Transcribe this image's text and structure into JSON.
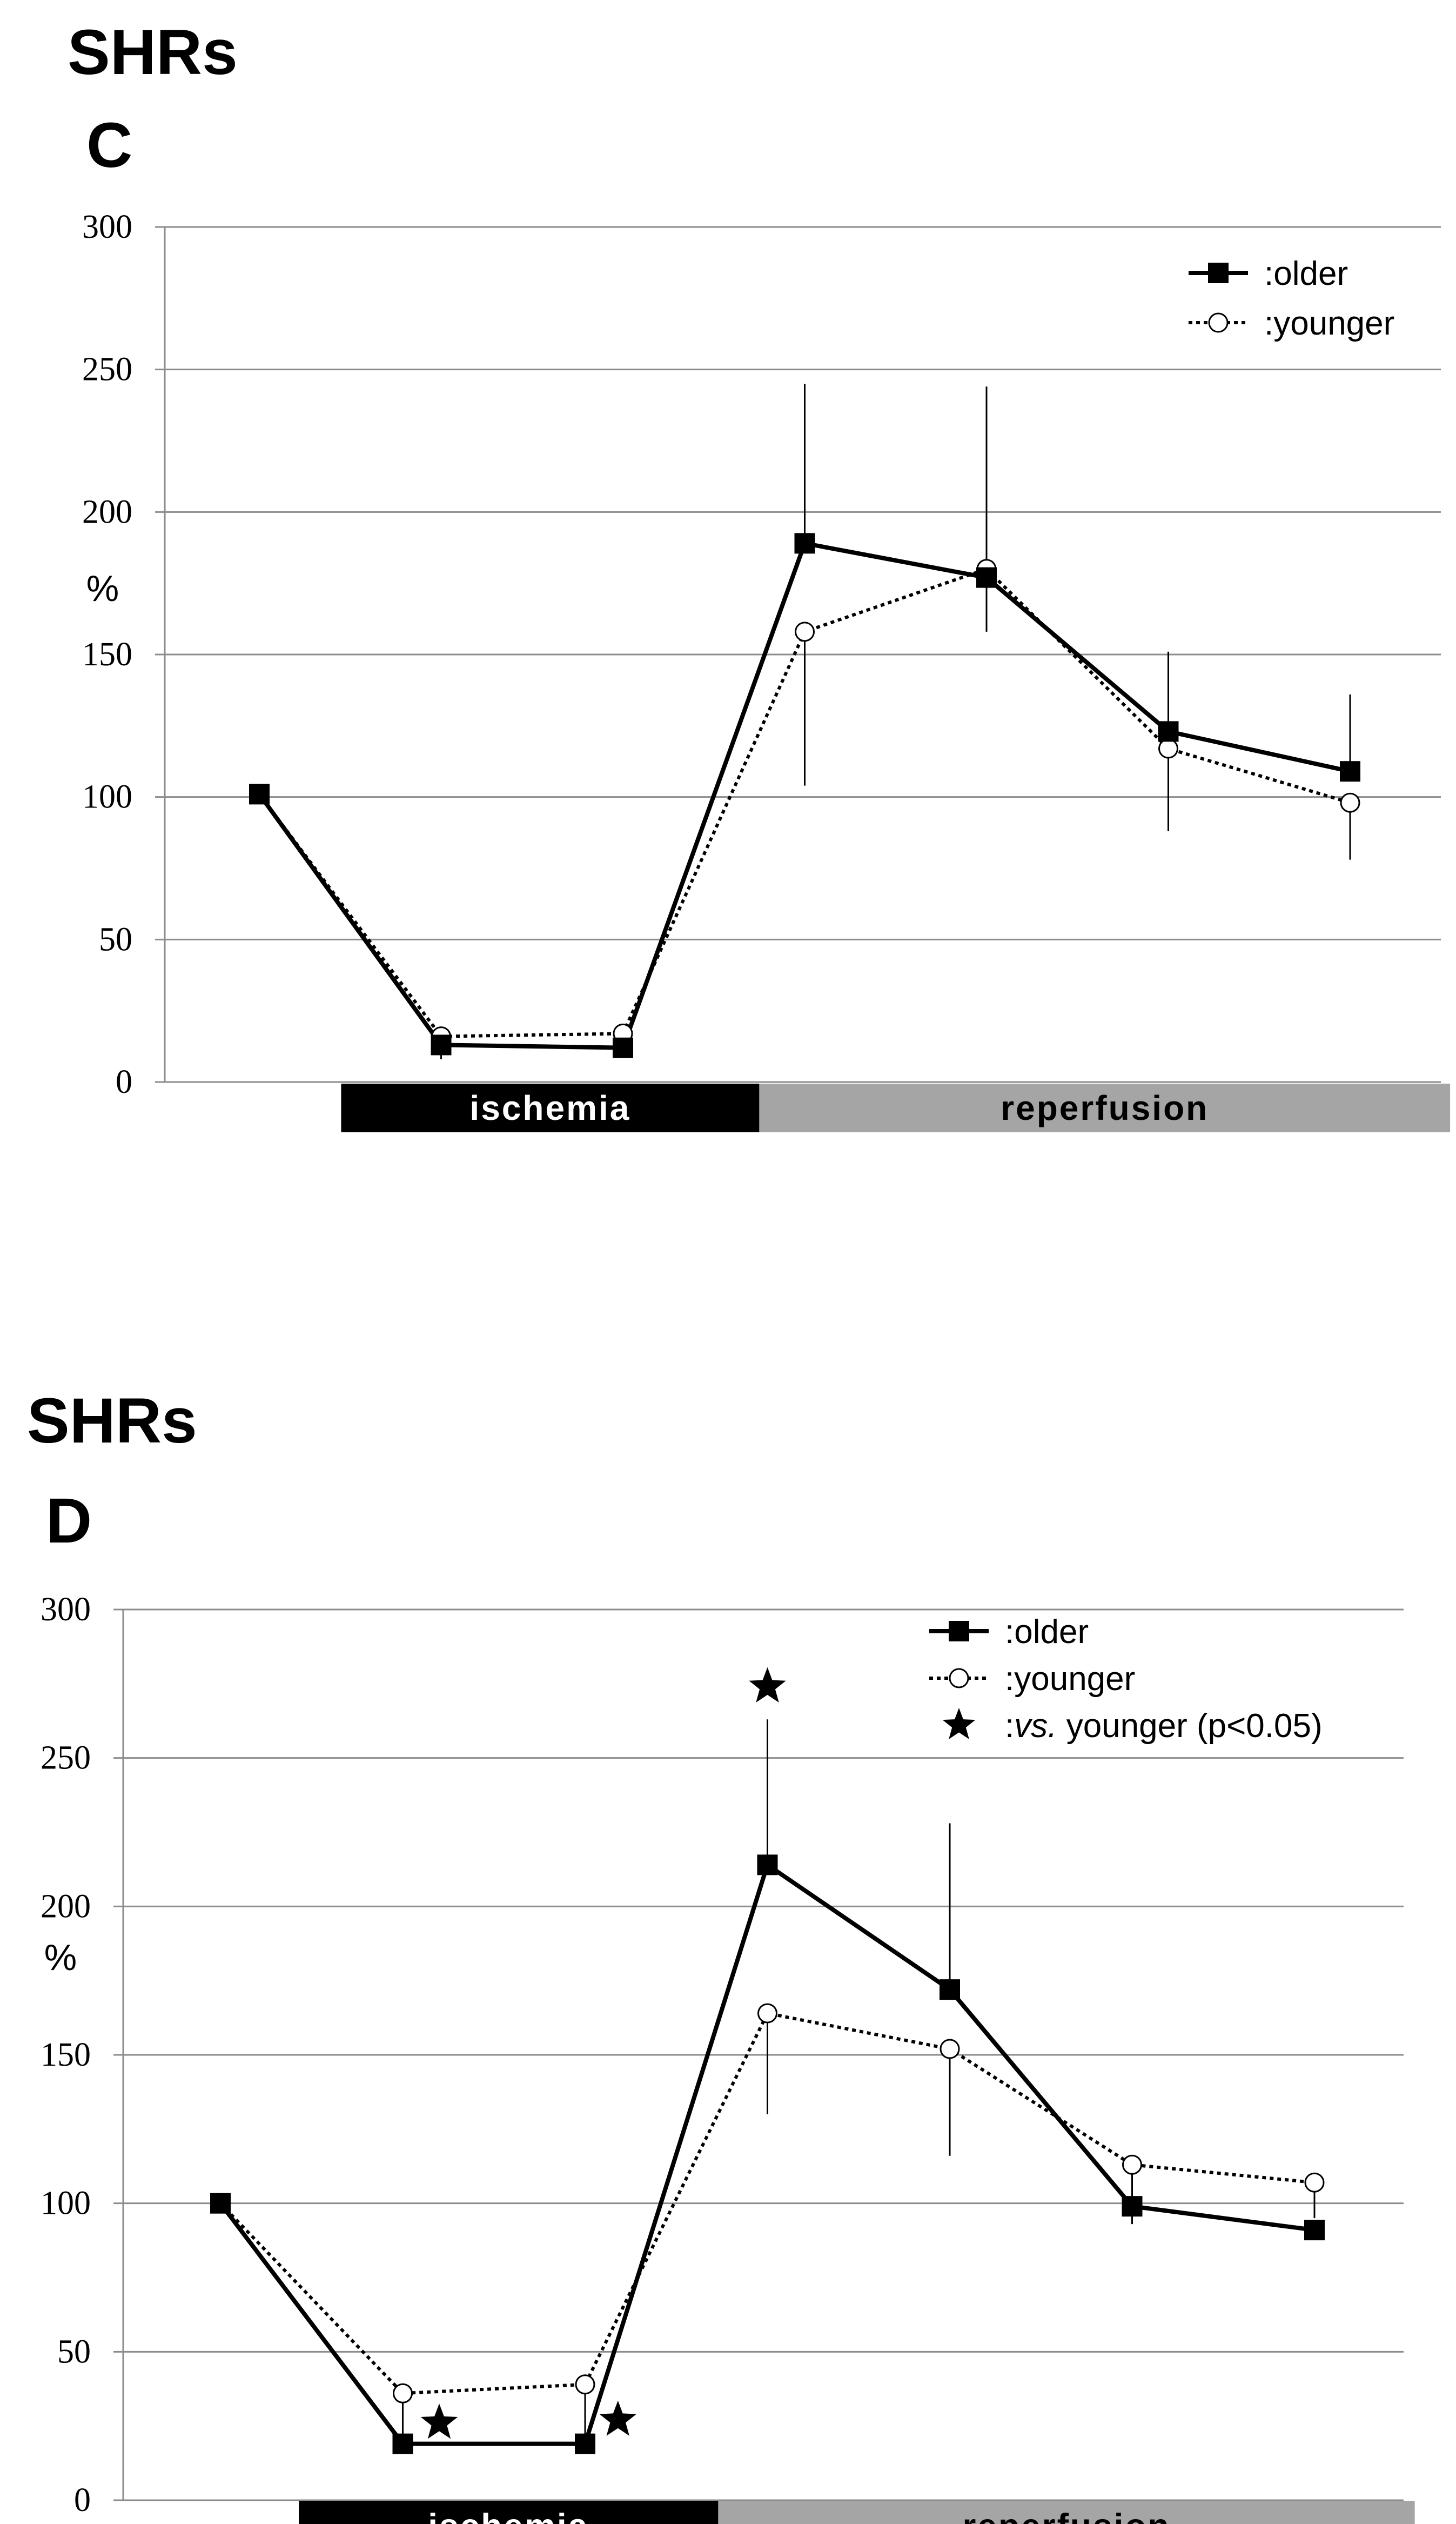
{
  "figure": {
    "panels": [
      {
        "group": "SHRs",
        "letter": "C"
      },
      {
        "group": "SHRs",
        "letter": "D"
      }
    ]
  },
  "chart_data": [
    {
      "type": "line",
      "title": "SHRs",
      "panel": "C",
      "ylabel": "%",
      "xlabel": "",
      "ylim": [
        0,
        300
      ],
      "yticks": [
        0,
        50,
        100,
        150,
        200,
        250,
        300
      ],
      "grid": true,
      "legend_position": "top-right",
      "x": [
        1,
        2,
        3,
        4,
        5,
        6,
        7
      ],
      "series": [
        {
          "name": "older",
          "legend_label": ":older",
          "style": "solid",
          "marker": "filled-square",
          "values": [
            101,
            13,
            12,
            189,
            177,
            123,
            109
          ],
          "error_up": [
            0,
            0,
            0,
            56,
            0,
            28,
            27
          ],
          "error_down": [
            0,
            0,
            0,
            0,
            0,
            0,
            0
          ]
        },
        {
          "name": "younger",
          "legend_label": ":younger",
          "style": "dotted",
          "marker": "open-circle",
          "values": [
            101,
            16,
            17,
            158,
            180,
            117,
            98
          ],
          "error_up": [
            0,
            0,
            0,
            0,
            64,
            0,
            0
          ],
          "error_down": [
            0,
            8,
            0,
            54,
            22,
            29,
            20
          ]
        }
      ],
      "phase_bands": [
        {
          "label": "ischemia",
          "from": 1.45,
          "to": 3.75,
          "color": "#000000",
          "text_color": "#ffffff"
        },
        {
          "label": "reperfusion",
          "from": 3.75,
          "to": 7.55,
          "color": "#a5a5a5",
          "text_color": "#000000"
        }
      ],
      "significance_stars": []
    },
    {
      "type": "line",
      "title": "SHRs",
      "panel": "D",
      "ylabel": "%",
      "xlabel": "",
      "ylim": [
        0,
        300
      ],
      "yticks": [
        0,
        50,
        100,
        150,
        200,
        250,
        300
      ],
      "grid": true,
      "legend_position": "top-right",
      "x": [
        1,
        2,
        3,
        4,
        5,
        6,
        7
      ],
      "series": [
        {
          "name": "older",
          "legend_label": ":older",
          "style": "solid",
          "marker": "filled-square",
          "values": [
            100,
            19,
            19,
            214,
            172,
            99,
            91
          ],
          "error_up": [
            0,
            0,
            0,
            49,
            56,
            0,
            0
          ],
          "error_down": [
            0,
            0,
            0,
            0,
            0,
            6,
            0
          ]
        },
        {
          "name": "younger",
          "legend_label": ":younger",
          "style": "dotted",
          "marker": "open-circle",
          "values": [
            100,
            36,
            39,
            164,
            152,
            113,
            107
          ],
          "error_up": [
            0,
            0,
            0,
            0,
            0,
            0,
            0
          ],
          "error_down": [
            0,
            17,
            20,
            34,
            36,
            16,
            12
          ]
        }
      ],
      "phase_bands": [
        {
          "label": "ischemia",
          "from": 1.43,
          "to": 3.73,
          "color": "#000000",
          "text_color": "#ffffff"
        },
        {
          "label": "reperfusion",
          "from": 3.73,
          "to": 7.55,
          "color": "#a5a5a5",
          "text_color": "#000000"
        }
      ],
      "significance_stars": [
        {
          "x": 2.2,
          "y": 26
        },
        {
          "x": 3.18,
          "y": 27
        },
        {
          "x": 4,
          "y": 274
        }
      ],
      "significance_legend": {
        "prefix": ":",
        "italic": "vs.",
        "suffix": " younger (p<0.05)"
      }
    }
  ]
}
